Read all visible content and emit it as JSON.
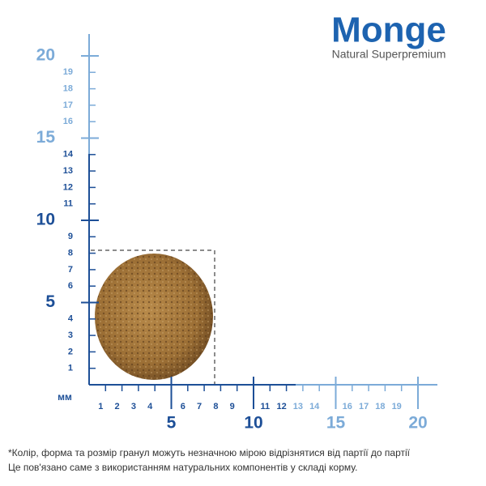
{
  "logo": {
    "brand": "Monge",
    "tagline": "Natural Superpremium"
  },
  "ruler": {
    "unit": "мм",
    "vertical": {
      "dark": {
        "minor": [
          1,
          2,
          3,
          4,
          6,
          7,
          8,
          9,
          11,
          12,
          13,
          14
        ],
        "major": [
          5,
          10
        ]
      },
      "light": {
        "minor": [
          16,
          17,
          18,
          19
        ],
        "major": [
          15,
          20
        ]
      }
    },
    "horizontal": {
      "dark": {
        "minor": [
          1,
          2,
          3,
          4,
          6,
          7,
          8,
          9,
          11,
          12
        ],
        "major": [
          5,
          10
        ]
      },
      "light": {
        "minor": [
          13,
          14,
          16,
          17,
          18,
          19
        ],
        "major": [
          15,
          20
        ]
      }
    }
  },
  "footnote": [
    "*Колір, форма та розмір гранул можуть незначною мірою відрізнятися від партії до партії",
    "Це пов'язано саме з використанням натуральних компонентів у складі корму."
  ]
}
